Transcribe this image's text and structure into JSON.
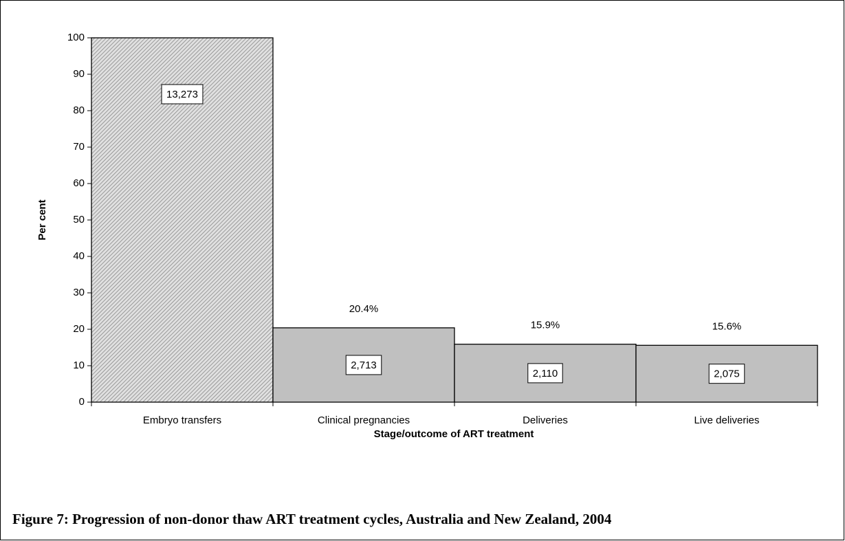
{
  "chart_data": {
    "type": "bar",
    "title": "Figure 7: Progression of non-donor thaw ART treatment cycles, Australia and New Zealand, 2004",
    "x_label": "Stage/outcome of ART treatment",
    "y_label": "Per cent",
    "categories": [
      "Embryo transfers",
      "Clinical pregnancies",
      "Deliveries",
      "Live deliveries"
    ],
    "values": [
      100,
      20.4,
      15.9,
      15.6
    ],
    "value_labels": [
      null,
      "20.4%",
      "15.9%",
      "15.6%"
    ],
    "counts": [
      13273,
      2713,
      2110,
      2075
    ],
    "count_labels": [
      "13,273",
      "2,713",
      "2,110",
      "2,075"
    ],
    "color": "#c0c0c0",
    "bar_styles": [
      "hatch",
      "solid",
      "solid",
      "solid"
    ],
    "ylim": [
      0,
      100
    ],
    "yticks": [
      0,
      10,
      20,
      30,
      40,
      50,
      60,
      70,
      80,
      90,
      100
    ],
    "grid": false
  }
}
